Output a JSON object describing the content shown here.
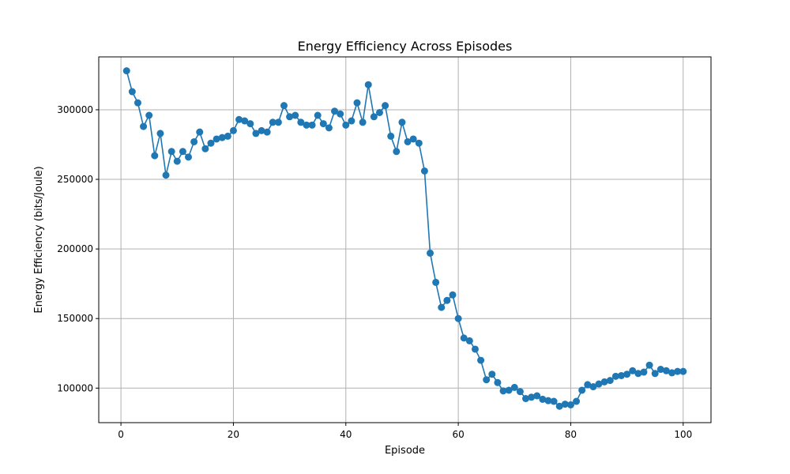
{
  "chart_data": {
    "type": "line",
    "title": "Energy Efficiency Across Episodes",
    "xlabel": "Episode",
    "ylabel": "Energy Efficiency (bits/Joule)",
    "xlim": [
      -3.95,
      104.95
    ],
    "ylim": [
      75200,
      338000
    ],
    "xticks": [
      0,
      20,
      40,
      60,
      80,
      100
    ],
    "yticks": [
      100000,
      150000,
      200000,
      250000,
      300000
    ],
    "grid": true,
    "marker": "circle",
    "colors": {
      "series": "#1f77b4"
    },
    "series": [
      {
        "x": [
          1,
          2,
          3,
          4,
          5,
          6,
          7,
          8,
          9,
          10,
          11,
          12,
          13,
          14,
          15,
          16,
          17,
          18,
          19,
          20,
          21,
          22,
          23,
          24,
          25,
          26,
          27,
          28,
          29,
          30,
          31,
          32,
          33,
          34,
          35,
          36,
          37,
          38,
          39,
          40,
          41,
          42,
          43,
          44,
          45,
          46,
          47,
          48,
          49,
          50,
          51,
          52,
          53,
          54,
          55,
          56,
          57,
          58,
          59,
          60,
          61,
          62,
          63,
          64,
          65,
          66,
          67,
          68,
          69,
          70,
          71,
          72,
          73,
          74,
          75,
          76,
          77,
          78,
          79,
          80,
          81,
          82,
          83,
          84,
          85,
          86,
          87,
          88,
          89,
          90,
          91,
          92,
          93,
          94,
          95,
          96,
          97,
          98,
          99,
          100
        ],
        "values": [
          328000,
          313000,
          305000,
          288000,
          296000,
          267000,
          283000,
          253000,
          270000,
          263000,
          270000,
          266000,
          277000,
          284000,
          272000,
          276000,
          279000,
          280000,
          281000,
          285000,
          293000,
          292000,
          290000,
          283000,
          285000,
          284000,
          291000,
          291000,
          303000,
          295000,
          296000,
          291000,
          289000,
          289000,
          296000,
          290000,
          287000,
          299000,
          297000,
          289000,
          292000,
          305000,
          291000,
          318000,
          295000,
          298000,
          303000,
          281000,
          270000,
          291000,
          277000,
          279000,
          276000,
          256000,
          197000,
          176000,
          158000,
          163000,
          167000,
          150000,
          136000,
          134000,
          128000,
          120000,
          106000,
          110000,
          104000,
          98000,
          98500,
          100500,
          97500,
          92500,
          93500,
          94500,
          92000,
          91000,
          90500,
          87000,
          88500,
          88000,
          90500,
          98500,
          102500,
          101000,
          103000,
          104500,
          105500,
          108500,
          109000,
          110000,
          112500,
          110500,
          111500,
          116500,
          110500,
          113500,
          112500,
          111000,
          112000,
          112000
        ]
      }
    ]
  }
}
